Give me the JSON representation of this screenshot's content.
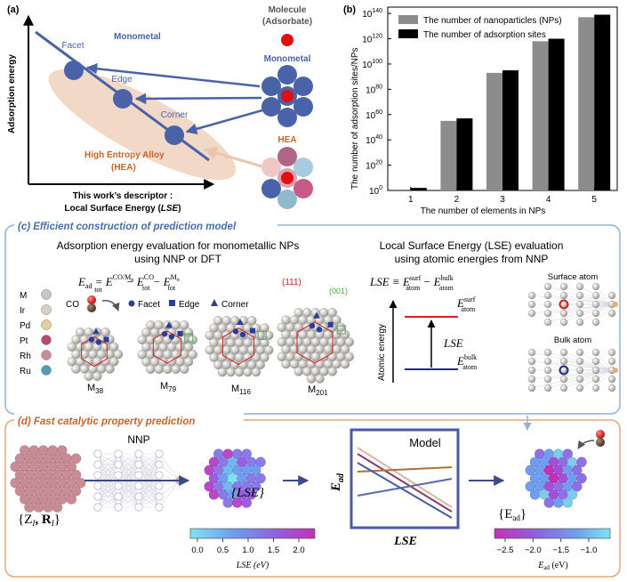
{
  "panel_a": {
    "label": "(a)",
    "y_axis": "Adsorption energy",
    "x_axis_line1": "This work’s descriptor :",
    "x_axis_line2": "Local Surface Energy (",
    "x_axis_lse": "LSE",
    "x_axis_close": ")",
    "monometal_line": "Monometal",
    "facet": "Facet",
    "edge": "Edge",
    "corner": "Corner",
    "hea_line1": "High Entropy Alloy",
    "hea_line2": "(HEA)",
    "molecule_line1": "Molecule",
    "molecule_line2": "(Adsorbate)",
    "monometal_cluster": "Monometal",
    "hea_cluster": "HEA",
    "colors": {
      "monometal": "#4a63a8",
      "hea": "#c8632b",
      "ellipse": "#f1d4c1"
    }
  },
  "panel_b": {
    "label": "(b)",
    "ylabel": "The number of adsorption sites/NPs",
    "xlabel": "The number of elements in NPs"
  },
  "chart_data": {
    "type": "bar",
    "title": "",
    "categories": [
      "1",
      "2",
      "3",
      "4",
      "5"
    ],
    "series": [
      {
        "name": "The number of nanoparticles (NPs)",
        "color": "#8c8c8c",
        "log10_values": [
          0,
          55,
          93,
          118,
          137
        ]
      },
      {
        "name": "The number of adsorption sites",
        "color": "#000000",
        "log10_values": [
          2,
          57,
          95,
          120,
          139
        ]
      }
    ],
    "yscale": "log",
    "ylim_log10": [
      0,
      145
    ],
    "yticks": [
      {
        "base": "10",
        "exp": "0",
        "v": 0
      },
      {
        "base": "10",
        "exp": "20",
        "v": 20
      },
      {
        "base": "10",
        "exp": "40",
        "v": 40
      },
      {
        "base": "10",
        "exp": "60",
        "v": 60
      },
      {
        "base": "10",
        "exp": "80",
        "v": 80
      },
      {
        "base": "10",
        "exp": "100",
        "v": 100
      },
      {
        "base": "10",
        "exp": "120",
        "v": 120
      },
      {
        "base": "10",
        "exp": "140",
        "v": 140
      }
    ],
    "xlabel": "The number of elements in NPs",
    "ylabel": "The number of adsorption sites/NPs",
    "legend_position": "top-left"
  },
  "panel_c": {
    "title": "(c) Efficient construction of prediction model",
    "left_title1": "Adsorption energy evaluation for monometallic NPs",
    "left_title2": "using NNP or DFT",
    "eq_lhs": "E",
    "eq_lhs_sub": "ad",
    "eq_mid": " = E",
    "eq_t1_sup": "CO/M",
    "eq_t1_supsub": "n",
    "eq_t1_sub": "tot",
    "eq_minus": " − E",
    "eq_t2_sup": "CO",
    "eq_t2_sub": "tot",
    "eq_minus2": " − E",
    "eq_t3_sup": "M",
    "eq_t3_supsub": "n",
    "eq_t3_sub": "tot",
    "elements": [
      "M",
      "Ir",
      "Pd",
      "Pt",
      "Rh",
      "Ru"
    ],
    "element_colors": [
      "#c9c6c1",
      "#d6cfc2",
      "#e2cf9a",
      "#b54a78",
      "#c98c96",
      "#4f9ab8"
    ],
    "co_label": "CO",
    "facet": "Facet",
    "edge": "Edge",
    "corner": "Corner",
    "miller_111": "(111)",
    "miller_001": "(001)",
    "clusters": [
      {
        "label": "M",
        "sub": "38"
      },
      {
        "label": "M",
        "sub": "79"
      },
      {
        "label": "M",
        "sub": "116"
      },
      {
        "label": "M",
        "sub": "201"
      }
    ],
    "right_title1": "Local Surface Energy (LSE) evaluation",
    "right_title2": "using atomic energies from NNP",
    "lse_eq": "LSE ≡ E",
    "lse_sup1": "surf",
    "lse_sub1": "atom",
    "lse_minus": " − E",
    "lse_sup2": "bulk",
    "lse_sub2": "atom",
    "atomic_energy": "Atomic energy",
    "e_surf": "E",
    "e_surf_sup": "surf",
    "e_surf_sub": "atom",
    "e_bulk": "E",
    "e_bulk_sup": "bulk",
    "e_bulk_sub": "atom",
    "lse_mid": "LSE",
    "surface_atom": "Surface atom",
    "bulk_atom": "Bulk atom"
  },
  "panel_d": {
    "title": "(d) Fast catalytic property prediction",
    "nnp": "NNP",
    "input_label": "{Z",
    "input_sub": "I",
    "input_mid": ", R",
    "input_sub2": "I",
    "input_close": "}",
    "lse_set": "{LSE}",
    "model": "Model",
    "model_y": "E",
    "model_y_sub": "ad",
    "model_x": "LSE",
    "ead_set": "{E",
    "ead_set_sub": "ad",
    "ead_set_close": "}",
    "cbar1_ticks": [
      "0.0",
      "0.5",
      "1.0",
      "1.5",
      "2.0"
    ],
    "cbar1_label": "LSE (eV)",
    "cbar2_ticks": [
      "−2.5",
      "−2.0",
      "−1.5",
      "−1.0"
    ],
    "cbar2_label": "E",
    "cbar2_label_sub": "ad",
    "cbar2_unit": " (eV)"
  }
}
